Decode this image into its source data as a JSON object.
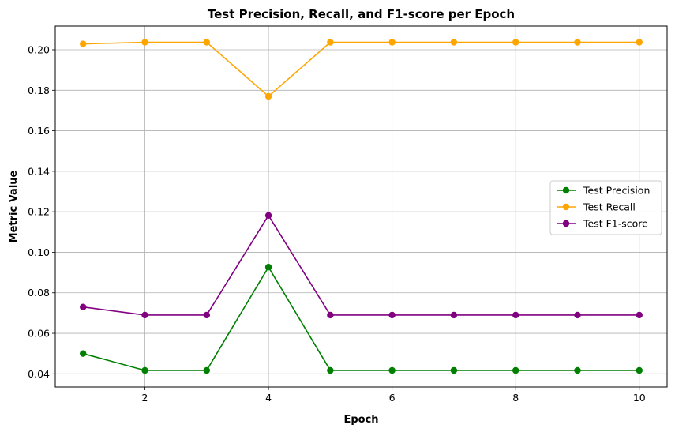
{
  "chart_data": {
    "type": "line",
    "title": "Test Precision, Recall, and F1-score per Epoch",
    "xlabel": "Epoch",
    "ylabel": "Metric Value",
    "x": [
      1,
      2,
      3,
      4,
      5,
      6,
      7,
      8,
      9,
      10
    ],
    "xlim": [
      0.55,
      10.45
    ],
    "ylim": [
      0.0335,
      0.2117
    ],
    "xticks": [
      2,
      4,
      6,
      8,
      10
    ],
    "yticks": [
      0.04,
      0.06,
      0.08,
      0.1,
      0.12,
      0.14,
      0.16,
      0.18,
      0.2
    ],
    "xtick_labels": [
      "2",
      "4",
      "6",
      "8",
      "10"
    ],
    "ytick_labels": [
      "0.04",
      "0.06",
      "0.08",
      "0.10",
      "0.12",
      "0.14",
      "0.16",
      "0.18",
      "0.20"
    ],
    "grid": true,
    "legend_position": "center-right",
    "series": [
      {
        "name": "Test Precision",
        "color": "#008000",
        "marker": "circle",
        "values": [
          0.05,
          0.0417,
          0.0417,
          0.0927,
          0.0417,
          0.0417,
          0.0417,
          0.0417,
          0.0417,
          0.0417
        ]
      },
      {
        "name": "Test Recall",
        "color": "#ffa500",
        "marker": "circle",
        "values": [
          0.2029,
          0.2037,
          0.2037,
          0.177,
          0.2037,
          0.2037,
          0.2037,
          0.2037,
          0.2037,
          0.2037
        ]
      },
      {
        "name": "Test F1-score",
        "color": "#800080",
        "marker": "circle",
        "values": [
          0.073,
          0.069,
          0.069,
          0.1182,
          0.069,
          0.069,
          0.069,
          0.069,
          0.069,
          0.069
        ]
      }
    ]
  }
}
